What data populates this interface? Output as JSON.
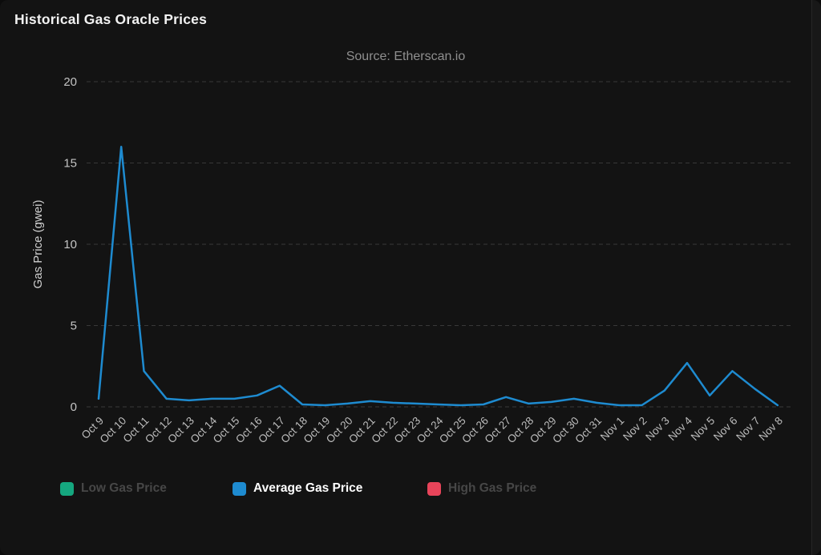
{
  "chart_data": {
    "type": "line",
    "title": "Historical Gas Oracle Prices",
    "subtitle": "Source: Etherscan.io",
    "xlabel": "",
    "ylabel": "Gas Price (gwei)",
    "ylim": [
      0,
      20
    ],
    "yticks": [
      20,
      15,
      10,
      5,
      0
    ],
    "grid": "horizontal-dashed",
    "legend_position": "bottom",
    "background_color": "#131313",
    "gridline_color": "#383838",
    "categories": [
      "Oct 9",
      "Oct 10",
      "Oct 11",
      "Oct 12",
      "Oct 13",
      "Oct 14",
      "Oct 15",
      "Oct 16",
      "Oct 17",
      "Oct 18",
      "Oct 19",
      "Oct 20",
      "Oct 21",
      "Oct 22",
      "Oct 23",
      "Oct 24",
      "Oct 25",
      "Oct 26",
      "Oct 27",
      "Oct 28",
      "Oct 29",
      "Oct 30",
      "Oct 31",
      "Nov 1",
      "Nov 2",
      "Nov 3",
      "Nov 4",
      "Nov 5",
      "Nov 6",
      "Nov 7",
      "Nov 8"
    ],
    "series": [
      {
        "name": "Low Gas Price",
        "color": "#15a77f",
        "visible": false,
        "values": null
      },
      {
        "name": "Average Gas Price",
        "color": "#1e8bd0",
        "visible": true,
        "values": [
          0.5,
          16,
          2.2,
          0.5,
          0.4,
          0.5,
          0.5,
          0.7,
          1.3,
          0.15,
          0.1,
          0.2,
          0.35,
          0.25,
          0.2,
          0.15,
          0.1,
          0.15,
          0.6,
          0.2,
          0.3,
          0.5,
          0.25,
          0.1,
          0.1,
          1.0,
          2.7,
          0.7,
          2.2,
          1.1,
          0.1
        ]
      },
      {
        "name": "High Gas Price",
        "color": "#e8445a",
        "visible": false,
        "values": null
      }
    ]
  }
}
